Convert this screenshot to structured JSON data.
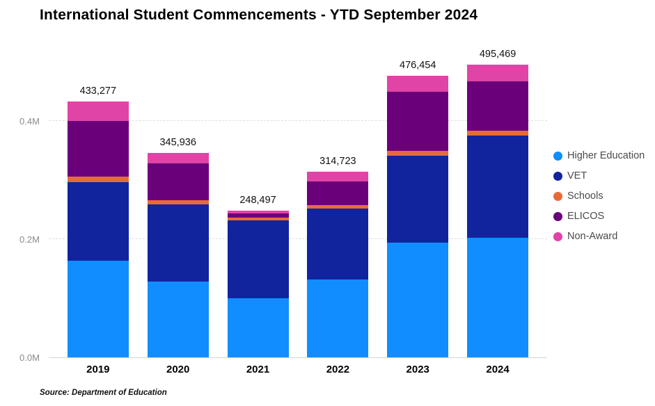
{
  "title": "International Student Commencements - YTD September 2024",
  "source_note": "Source: Department of Education",
  "chart_data": {
    "type": "bar",
    "stacked": true,
    "title": "International Student Commencements - YTD September 2024",
    "xlabel": "",
    "ylabel": "",
    "categories": [
      "2019",
      "2020",
      "2021",
      "2022",
      "2023",
      "2024"
    ],
    "series": [
      {
        "name": "Higher Education",
        "color": "#118DFF",
        "values": [
          164000,
          128000,
          100000,
          132000,
          194000,
          202000
        ]
      },
      {
        "name": "VET",
        "color": "#12239E",
        "values": [
          132000,
          131000,
          132000,
          120000,
          147000,
          173000
        ]
      },
      {
        "name": "Schools",
        "color": "#E66C37",
        "values": [
          9500,
          7000,
          4500,
          6000,
          8000,
          9000
        ]
      },
      {
        "name": "ELICOS",
        "color": "#6B007B",
        "values": [
          94000,
          62000,
          6500,
          40000,
          101000,
          83000
        ]
      },
      {
        "name": "Non-Award",
        "color": "#E044A7",
        "values": [
          33777,
          17936,
          5497,
          16723,
          26454,
          28469
        ]
      }
    ],
    "totals": [
      "433,277",
      "345,936",
      "248,497",
      "314,723",
      "476,454",
      "495,469"
    ],
    "total_values": [
      433277,
      345936,
      248497,
      314723,
      476454,
      495469
    ],
    "y_ticks": [
      "0.0M",
      "0.2M",
      "0.4M"
    ],
    "y_tick_values": [
      0,
      200000,
      400000
    ],
    "ylim": [
      0,
      523000
    ],
    "grid": true,
    "legend_position": "right"
  }
}
